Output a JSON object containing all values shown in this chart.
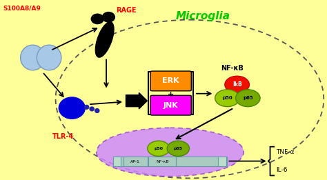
{
  "bg_color": "#FFFF99",
  "microglia_label": "Microglia",
  "microglia_color": "#00CC00",
  "s100_label": "S100A8/A9",
  "s100_color": "#FF0000",
  "rage_label": "RAGE",
  "rage_color": "#FF0000",
  "tlr4_label": "TLR-4",
  "tlr4_color": "#FF0000",
  "nfkb_label": "NF-κB",
  "erk_label": "ERK",
  "erk_color": "#FF8C00",
  "jnk_label": "JNK",
  "jnk_color": "#FF00FF",
  "ikb_label": "IkB",
  "ap1_label": "AP-1",
  "nfkb_box_label": "NF-κB",
  "tnfa_label": "TNF-α",
  "il6_label": "IL-6",
  "nucleus_color": "#CC88FF",
  "blue_circle_color": "#0000DD",
  "ikb_color": "#EE1100",
  "p50_color": "#99CC00",
  "p65_color": "#77AA00",
  "p50_label": "p50",
  "p65_label": "p65"
}
